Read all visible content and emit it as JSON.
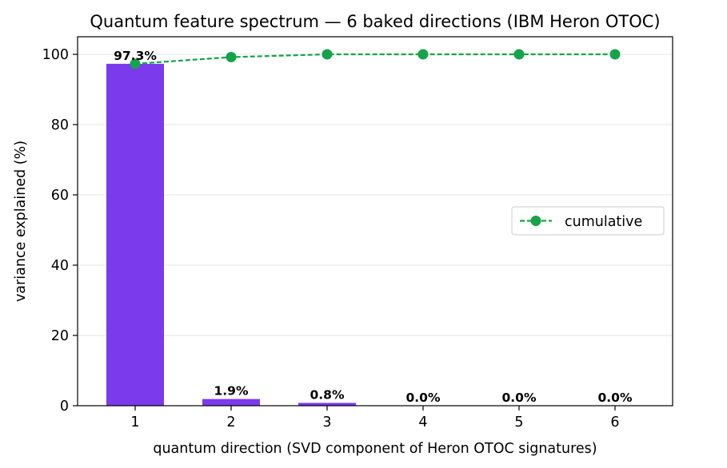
{
  "chart_data": {
    "type": "bar",
    "title": "Quantum feature spectrum — 6 baked directions (IBM Heron OTOC)",
    "xlabel": "quantum direction (SVD component of Heron OTOC signatures)",
    "ylabel": "variance explained (%)",
    "categories": [
      "1",
      "2",
      "3",
      "4",
      "5",
      "6"
    ],
    "ylim": [
      0,
      105
    ],
    "yticks": [
      "0",
      "20",
      "40",
      "60",
      "80",
      "100"
    ],
    "grid": "horizontal",
    "legend_placement": "center-right",
    "series": [
      {
        "kind": "bar",
        "values": [
          97.3,
          1.9,
          0.8,
          0.0,
          0.0,
          0.0
        ],
        "labels": [
          "97.3%",
          "1.9%",
          "0.8%",
          "0.0%",
          "0.0%",
          "0.0%"
        ],
        "color": "#7c3aed"
      },
      {
        "kind": "line",
        "name": "cumulative",
        "style": "dashed",
        "marker": "circle",
        "values": [
          97.3,
          99.2,
          100.0,
          100.0,
          100.0,
          100.0
        ],
        "color": "#16a34a"
      }
    ]
  }
}
